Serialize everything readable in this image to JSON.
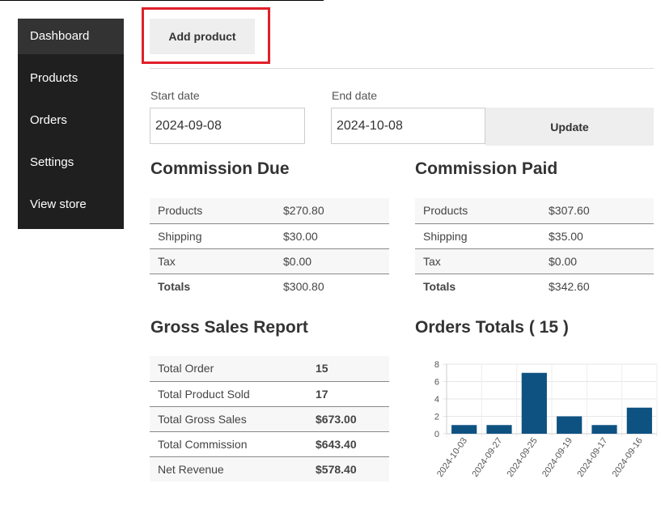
{
  "sidebar": {
    "items": [
      {
        "label": "Dashboard"
      },
      {
        "label": "Products"
      },
      {
        "label": "Orders"
      },
      {
        "label": "Settings"
      },
      {
        "label": "View store"
      }
    ]
  },
  "header": {
    "add_product_label": "Add product"
  },
  "filters": {
    "start_label": "Start date",
    "start_value": "2024-09-08",
    "end_label": "End date",
    "end_value": "2024-10-08",
    "update_label": "Update"
  },
  "commission_due": {
    "title": "Commission Due",
    "rows": [
      {
        "label": "Products",
        "value": "$270.80"
      },
      {
        "label": "Shipping",
        "value": "$30.00"
      },
      {
        "label": "Tax",
        "value": "$0.00"
      },
      {
        "label": "Totals",
        "value": "$300.80"
      }
    ]
  },
  "commission_paid": {
    "title": "Commission Paid",
    "rows": [
      {
        "label": "Products",
        "value": "$307.60"
      },
      {
        "label": "Shipping",
        "value": "$35.00"
      },
      {
        "label": "Tax",
        "value": "$0.00"
      },
      {
        "label": "Totals",
        "value": "$342.60"
      }
    ]
  },
  "gross_sales": {
    "title": "Gross Sales Report",
    "rows": [
      {
        "label": "Total Order",
        "value": "15"
      },
      {
        "label": "Total Product Sold",
        "value": "17"
      },
      {
        "label": "Total Gross Sales",
        "value": "$673.00"
      },
      {
        "label": "Total Commission",
        "value": "$643.40"
      },
      {
        "label": "Net Revenue",
        "value": "$578.40"
      }
    ]
  },
  "orders_totals": {
    "title": "Orders Totals ( 15 )"
  },
  "colors": {
    "sidebar_bg": "#1f1f1f",
    "highlight": "#e0202a",
    "bar": "#0e5282"
  },
  "chart_data": {
    "type": "bar",
    "categories": [
      "2024-10-03",
      "2024-09-27",
      "2024-09-25",
      "2024-09-19",
      "2024-09-17",
      "2024-09-16"
    ],
    "values": [
      1,
      1,
      7,
      2,
      1,
      3
    ],
    "ylim": [
      0,
      8
    ],
    "yticks": [
      "0",
      "2",
      "4",
      "6",
      "8"
    ],
    "grid": true
  }
}
